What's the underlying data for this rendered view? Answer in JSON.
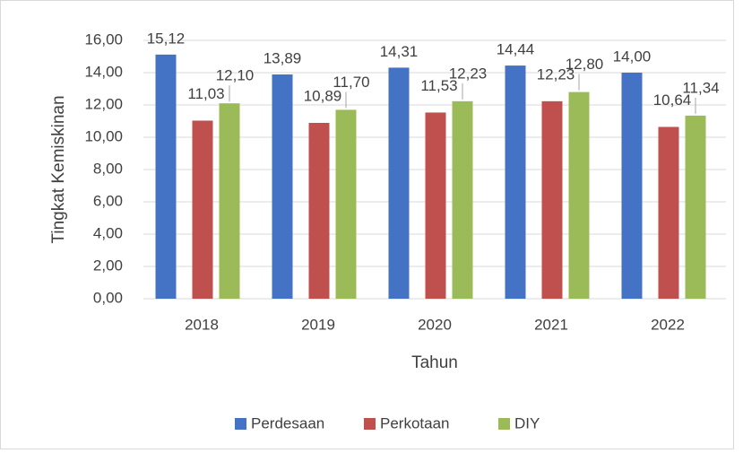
{
  "chart_data": {
    "type": "bar",
    "x_label": "Tahun",
    "y_label": "Tingkat Kemiskinan",
    "categories": [
      "2018",
      "2019",
      "2020",
      "2021",
      "2022"
    ],
    "series": [
      {
        "name": "Perdesaan",
        "color": "#4472c4",
        "values": [
          15.12,
          13.89,
          14.31,
          14.44,
          14.0
        ],
        "value_labels": [
          "15,12",
          "13,89",
          "14,31",
          "14,44",
          "14,00"
        ]
      },
      {
        "name": "Perkotaan",
        "color": "#c0504d",
        "values": [
          11.03,
          10.89,
          11.53,
          12.23,
          10.64
        ],
        "value_labels": [
          "11,03",
          "10,89",
          "11,53",
          "12,23",
          "10,64"
        ]
      },
      {
        "name": "DIY",
        "color": "#9bbb59",
        "values": [
          12.1,
          11.7,
          12.23,
          12.8,
          11.34
        ],
        "value_labels": [
          "12,10",
          "11,70",
          "12,23",
          "12,80",
          "11,34"
        ]
      }
    ],
    "ylim": [
      0,
      16
    ],
    "yticks": [
      {
        "value": 0,
        "label": "0,00"
      },
      {
        "value": 2,
        "label": "2,00"
      },
      {
        "value": 4,
        "label": "4,00"
      },
      {
        "value": 6,
        "label": "6,00"
      },
      {
        "value": 8,
        "label": "8,00"
      },
      {
        "value": 10,
        "label": "10,00"
      },
      {
        "value": 12,
        "label": "12,00"
      },
      {
        "value": 14,
        "label": "14,00"
      },
      {
        "value": 16,
        "label": "16,00"
      }
    ],
    "grid": true,
    "legend": "bottom"
  }
}
